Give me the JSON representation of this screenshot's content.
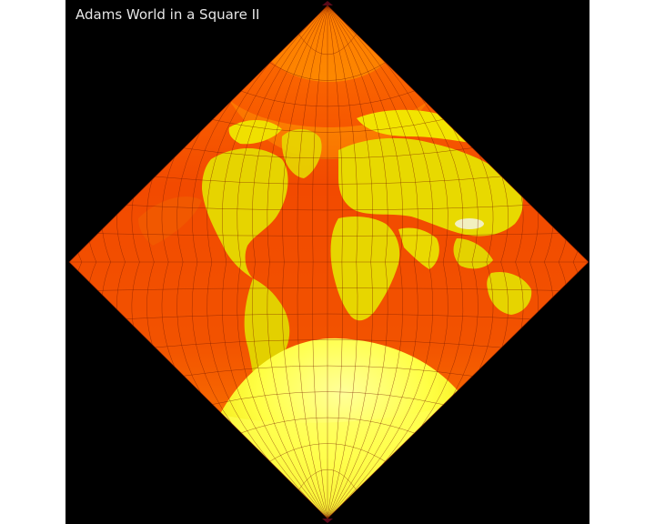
{
  "title": "Adams World in a Square II",
  "projection": "Adams World in a Square II",
  "colors": {
    "background": "#000000",
    "ocean_deep": "#f23c00",
    "ocean_shallow": "#ff6a00",
    "land_low": "#e6d800",
    "land_high": "#ffff3a",
    "ice": "#f2f2bf",
    "graticule": "#7a1c00",
    "pole_marker": "#5a0a1a"
  }
}
